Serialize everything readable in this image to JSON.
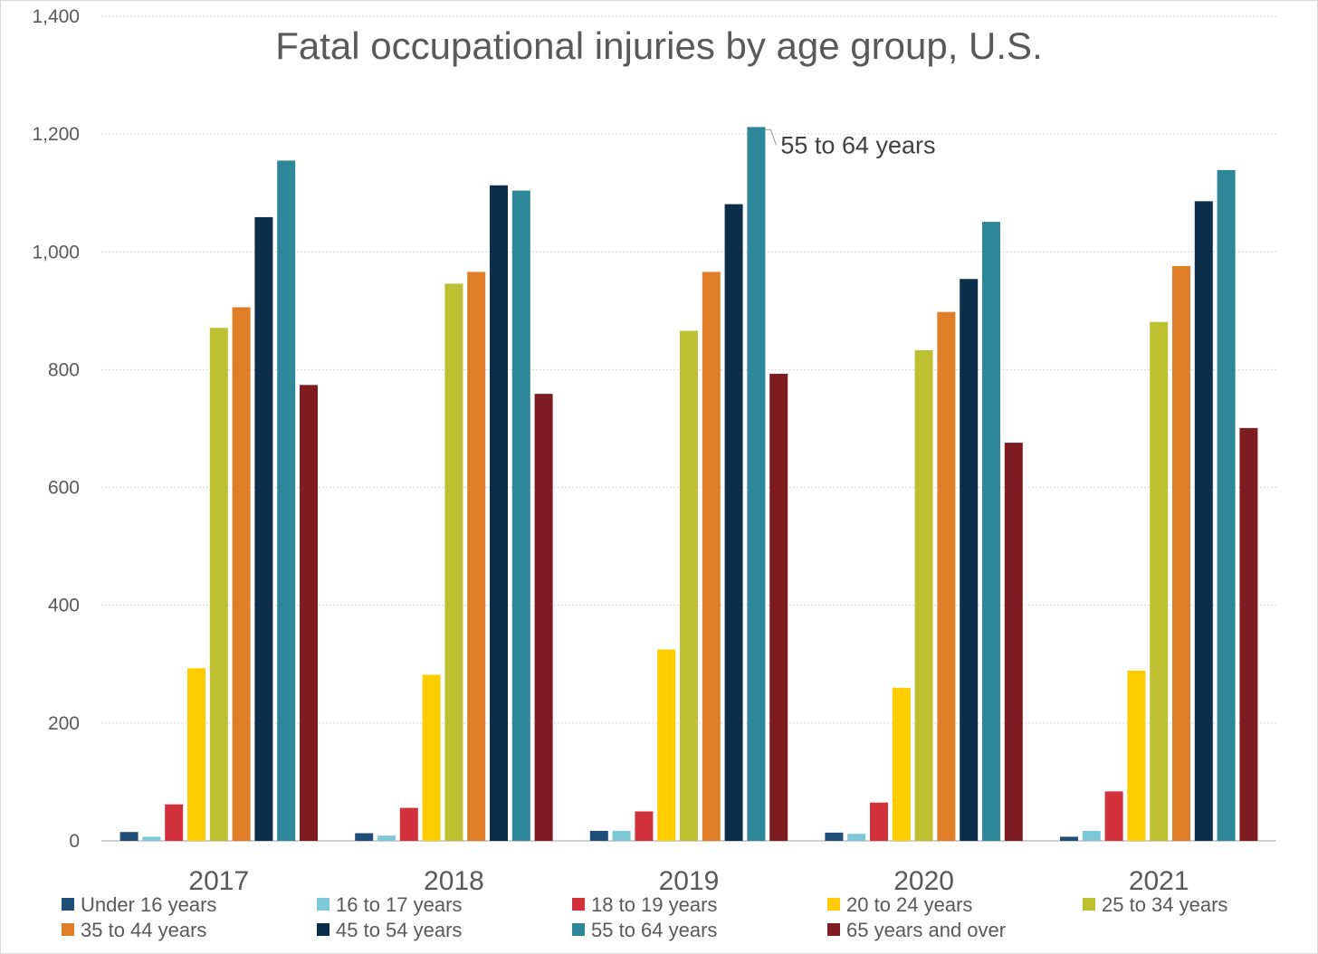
{
  "chart_data": {
    "type": "bar",
    "title": "Fatal occupational injuries by age group, U.S.",
    "xlabel": "",
    "ylabel": "",
    "ylim": [
      0,
      1400
    ],
    "yticks": [
      "0",
      "200",
      "400",
      "600",
      "800",
      "1,000",
      "1,200",
      "1,400"
    ],
    "grid": true,
    "legend_position": "bottom",
    "categories": [
      "2017",
      "2018",
      "2019",
      "2020",
      "2021"
    ],
    "series": [
      {
        "name": "Under 16 years",
        "color": "#1F4E79",
        "values": [
          15,
          13,
          17,
          14,
          7
        ]
      },
      {
        "name": "16 to 17 years",
        "color": "#7CC8D8",
        "values": [
          7,
          9,
          17,
          12,
          17
        ]
      },
      {
        "name": "18 to 19 years",
        "color": "#D2323C",
        "values": [
          62,
          56,
          50,
          65,
          84
        ]
      },
      {
        "name": "20 to 24 years",
        "color": "#FFCC00",
        "values": [
          293,
          282,
          325,
          260,
          289
        ]
      },
      {
        "name": "25 to 34 years",
        "color": "#BDC030",
        "values": [
          871,
          946,
          866,
          833,
          881
        ]
      },
      {
        "name": "35 to 44 years",
        "color": "#E07E28",
        "values": [
          906,
          966,
          966,
          898,
          976
        ]
      },
      {
        "name": "45 to 54 years",
        "color": "#0D2E4A",
        "values": [
          1059,
          1113,
          1081,
          954,
          1086
        ]
      },
      {
        "name": "55 to 64 years",
        "color": "#2E8799",
        "values": [
          1155,
          1104,
          1212,
          1051,
          1139
        ]
      },
      {
        "name": "65 years and over",
        "color": "#7F1C22",
        "values": [
          774,
          759,
          793,
          676,
          701
        ]
      }
    ],
    "annotation": {
      "text": "55 to 64 years",
      "series": "55 to 64 years",
      "category": "2019"
    }
  }
}
